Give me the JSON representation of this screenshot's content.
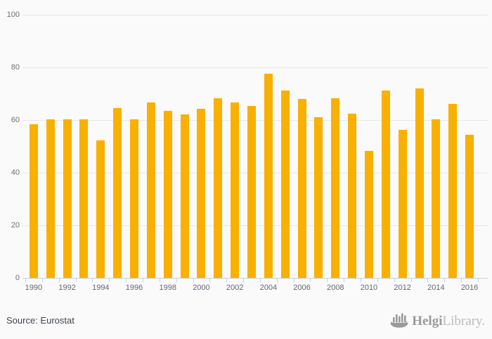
{
  "chart_data": {
    "type": "bar",
    "title": "",
    "xlabel": "",
    "ylabel": "",
    "categories": [
      "1990",
      "1991",
      "1992",
      "1993",
      "1994",
      "1995",
      "1996",
      "1997",
      "1998",
      "1999",
      "2000",
      "2001",
      "2002",
      "2003",
      "2004",
      "2005",
      "2006",
      "2007",
      "2008",
      "2009",
      "2010",
      "2011",
      "2012",
      "2013",
      "2014",
      "2015",
      "2016"
    ],
    "values": [
      58.3,
      60.2,
      60.2,
      60.2,
      52.3,
      64.6,
      60.2,
      66.8,
      63.5,
      62.2,
      64.4,
      68.4,
      66.8,
      65.4,
      77.7,
      71.2,
      68.1,
      61.1,
      68.3,
      62.4,
      48.4,
      71.3,
      56.2,
      71.9,
      60.2,
      66.2,
      54.5
    ],
    "ylim": [
      0,
      100
    ],
    "yticks": [
      0,
      20,
      40,
      60,
      80,
      100
    ],
    "xtick_label_step": 2,
    "grid": true,
    "legend_position": "none",
    "bar_color": "#F9B000"
  },
  "colors": {
    "background": "#FAFAFA",
    "bar": "#F9B000",
    "gridline": "#E7E7E7",
    "axis_line": "#C9D0DC",
    "y_label": "#707070",
    "x_label": "#5E6977",
    "source_text": "#3F4450",
    "logo_dark": "#9A9A9A",
    "logo_light": "#BBBBBB"
  },
  "footer": {
    "source": "Source: Eurostat",
    "logo": {
      "brand_bold": "Helgi",
      "brand_light": "Library."
    }
  }
}
